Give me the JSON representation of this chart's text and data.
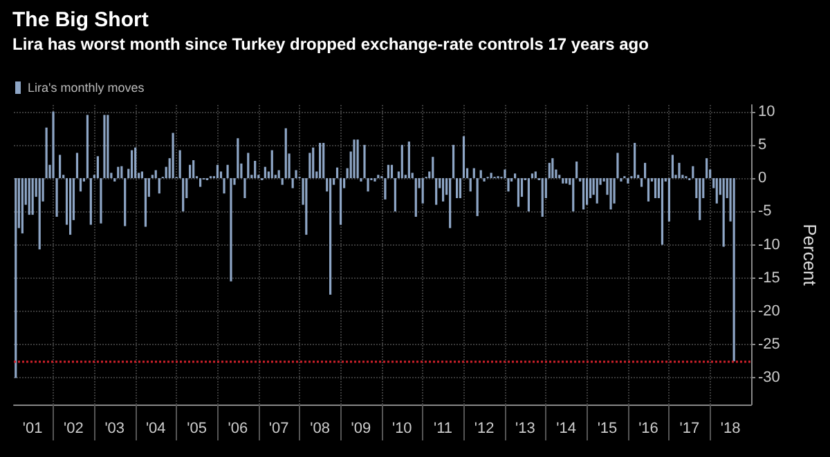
{
  "chart_data": {
    "type": "bar",
    "title": "The Big Short",
    "subtitle": "Lira has worst month since Turkey dropped exchange-rate controls 17 years ago",
    "ylabel": "Percent",
    "x": [
      "2001-02",
      "2001-03",
      "2001-04",
      "2001-05",
      "2001-06",
      "2001-07",
      "2001-08",
      "2001-09",
      "2001-10",
      "2001-11",
      "2001-12",
      "2002-01",
      "2002-02",
      "2002-03",
      "2002-04",
      "2002-05",
      "2002-06",
      "2002-07",
      "2002-08",
      "2002-09",
      "2002-10",
      "2002-11",
      "2002-12",
      "2003-01",
      "2003-02",
      "2003-03",
      "2003-04",
      "2003-05",
      "2003-06",
      "2003-07",
      "2003-08",
      "2003-09",
      "2003-10",
      "2003-11",
      "2003-12",
      "2004-01",
      "2004-02",
      "2004-03",
      "2004-04",
      "2004-05",
      "2004-06",
      "2004-07",
      "2004-08",
      "2004-09",
      "2004-10",
      "2004-11",
      "2004-12",
      "2005-01",
      "2005-02",
      "2005-03",
      "2005-04",
      "2005-05",
      "2005-06",
      "2005-07",
      "2005-08",
      "2005-09",
      "2005-10",
      "2005-11",
      "2005-12",
      "2006-01",
      "2006-02",
      "2006-03",
      "2006-04",
      "2006-05",
      "2006-06",
      "2006-07",
      "2006-08",
      "2006-09",
      "2006-10",
      "2006-11",
      "2006-12",
      "2007-01",
      "2007-02",
      "2007-03",
      "2007-04",
      "2007-05",
      "2007-06",
      "2007-07",
      "2007-08",
      "2007-09",
      "2007-10",
      "2007-11",
      "2007-12",
      "2008-01",
      "2008-02",
      "2008-03",
      "2008-04",
      "2008-05",
      "2008-06",
      "2008-07",
      "2008-08",
      "2008-09",
      "2008-10",
      "2008-11",
      "2008-12",
      "2009-01",
      "2009-02",
      "2009-03",
      "2009-04",
      "2009-05",
      "2009-06",
      "2009-07",
      "2009-08",
      "2009-09",
      "2009-10",
      "2009-11",
      "2009-12",
      "2010-01",
      "2010-02",
      "2010-03",
      "2010-04",
      "2010-05",
      "2010-06",
      "2010-07",
      "2010-08",
      "2010-09",
      "2010-10",
      "2010-11",
      "2010-12",
      "2011-01",
      "2011-02",
      "2011-03",
      "2011-04",
      "2011-05",
      "2011-06",
      "2011-07",
      "2011-08",
      "2011-09",
      "2011-10",
      "2011-11",
      "2011-12",
      "2012-01",
      "2012-02",
      "2012-03",
      "2012-04",
      "2012-05",
      "2012-06",
      "2012-07",
      "2012-08",
      "2012-09",
      "2012-10",
      "2012-11",
      "2012-12",
      "2013-01",
      "2013-02",
      "2013-03",
      "2013-04",
      "2013-05",
      "2013-06",
      "2013-07",
      "2013-08",
      "2013-09",
      "2013-10",
      "2013-11",
      "2013-12",
      "2014-01",
      "2014-02",
      "2014-03",
      "2014-04",
      "2014-05",
      "2014-06",
      "2014-07",
      "2014-08",
      "2014-09",
      "2014-10",
      "2014-11",
      "2014-12",
      "2015-01",
      "2015-02",
      "2015-03",
      "2015-04",
      "2015-05",
      "2015-06",
      "2015-07",
      "2015-08",
      "2015-09",
      "2015-10",
      "2015-11",
      "2015-12",
      "2016-01",
      "2016-02",
      "2016-03",
      "2016-04",
      "2016-05",
      "2016-06",
      "2016-07",
      "2016-08",
      "2016-09",
      "2016-10",
      "2016-11",
      "2016-12",
      "2017-01",
      "2017-02",
      "2017-03",
      "2017-04",
      "2017-05",
      "2017-06",
      "2017-07",
      "2017-08",
      "2017-09",
      "2017-10",
      "2017-11",
      "2017-12",
      "2018-01",
      "2018-02",
      "2018-03",
      "2018-04",
      "2018-05",
      "2018-06",
      "2018-07",
      "2018-08"
    ],
    "series": [
      {
        "name": "Lira's monthly moves",
        "color": "#8ea6c6",
        "values": [
          -30,
          -7.5,
          -8.3,
          -4,
          -5.5,
          -5.5,
          -2.8,
          -10.7,
          -3.5,
          7.6,
          2,
          10,
          -5.8,
          3.5,
          0.5,
          -7,
          -8.5,
          -6.3,
          3.8,
          -2,
          -0.5,
          9.5,
          -7,
          0.5,
          3.3,
          -6.8,
          9.5,
          9.5,
          0.8,
          -0.5,
          1.7,
          1.8,
          -7.2,
          1.4,
          4.2,
          4.6,
          0.8,
          1,
          -7.3,
          -2.8,
          0.5,
          1.2,
          -2.3,
          0.2,
          1.7,
          3,
          6.8,
          0.2,
          4.2,
          -5,
          -3,
          2,
          2.7,
          0.3,
          -1.3,
          -0.2,
          -0.3,
          0.3,
          0.3,
          2,
          1,
          -2.3,
          2,
          -15.5,
          -1,
          6,
          2.2,
          -3,
          3.8,
          0.5,
          2.6,
          0.5,
          -0.3,
          1.7,
          1,
          4.2,
          0.5,
          1.2,
          -1,
          7.5,
          3.7,
          -1.5,
          1.2,
          0.2,
          -4,
          -8.5,
          3.8,
          4.6,
          1,
          5.3,
          5.3,
          -2,
          -17.5,
          -1,
          1.6,
          -7,
          -1.5,
          1.5,
          4,
          5.8,
          5.8,
          -0.5,
          5,
          -2,
          -0.3,
          -0.5,
          0.5,
          0.3,
          -3.2,
          2,
          2,
          -5,
          1,
          5,
          0.5,
          5.5,
          0.8,
          -5.8,
          -1.5,
          -3.8,
          0.2,
          1,
          3.2,
          -4,
          -1.5,
          -3.5,
          -2.5,
          -7.5,
          5,
          -3,
          -3,
          6.3,
          1.5,
          -2,
          1.5,
          -5.7,
          1.2,
          -0.5,
          0.2,
          0.8,
          0.2,
          0.3,
          0.2,
          1.3,
          -2,
          -0.5,
          0.7,
          -4.3,
          -2.8,
          -0.3,
          -5,
          0.7,
          1,
          -0.3,
          -5.8,
          -3,
          2.3,
          3,
          1.3,
          0.5,
          -0.8,
          -0.8,
          -1,
          -5,
          2.5,
          -0.5,
          -4.7,
          -4,
          -3,
          -2.5,
          -3.8,
          -1,
          -0.5,
          -2.5,
          -4.7,
          -3.8,
          3.8,
          -0.5,
          0.3,
          -0.8,
          0.3,
          5.3,
          0.5,
          -1.3,
          2.3,
          -3.5,
          -0.5,
          -3,
          -3,
          -10,
          -0.5,
          -6.5,
          3.5,
          0.5,
          2.3,
          0.5,
          0.3,
          -0.3,
          1.8,
          -3,
          -6.3,
          -3,
          3,
          1.3,
          -1.5,
          -3.8,
          -2.5,
          -10.3,
          -3,
          -6.5,
          -27.5
        ]
      }
    ],
    "xlim": [
      "2001-01-15",
      "2019-01"
    ],
    "xticks": [
      {
        "value": "2001-07",
        "label": "'01"
      },
      {
        "value": "2002-07",
        "label": "'02"
      },
      {
        "value": "2003-07",
        "label": "'03"
      },
      {
        "value": "2004-07",
        "label": "'04"
      },
      {
        "value": "2005-07",
        "label": "'05"
      },
      {
        "value": "2006-07",
        "label": "'06"
      },
      {
        "value": "2007-07",
        "label": "'07"
      },
      {
        "value": "2008-07",
        "label": "'08"
      },
      {
        "value": "2009-07",
        "label": "'09"
      },
      {
        "value": "2010-07",
        "label": "'10"
      },
      {
        "value": "2011-07",
        "label": "'11"
      },
      {
        "value": "2012-07",
        "label": "'12"
      },
      {
        "value": "2013-07",
        "label": "'13"
      },
      {
        "value": "2014-07",
        "label": "'14"
      },
      {
        "value": "2015-07",
        "label": "'15"
      },
      {
        "value": "2016-07",
        "label": "'16"
      },
      {
        "value": "2017-07",
        "label": "'17"
      },
      {
        "value": "2018-07",
        "label": "'18"
      },
      {
        "value": "2002",
        "label": null
      },
      {
        "value": "2003",
        "label": null
      },
      {
        "value": "2004",
        "label": null
      },
      {
        "value": "2005",
        "label": null
      },
      {
        "value": "2006",
        "label": null
      },
      {
        "value": "2007",
        "label": null
      },
      {
        "value": "2008",
        "label": null
      },
      {
        "value": "2009",
        "label": null
      },
      {
        "value": "2010",
        "label": null
      },
      {
        "value": "2011",
        "label": null
      },
      {
        "value": "2012",
        "label": null
      },
      {
        "value": "2013",
        "label": null
      },
      {
        "value": "2014",
        "label": null
      },
      {
        "value": "2015",
        "label": null
      },
      {
        "value": "2016",
        "label": null
      },
      {
        "value": "2017",
        "label": null
      },
      {
        "value": "2018",
        "label": null
      }
    ],
    "ylim": [
      -34,
      11
    ],
    "yticks": [
      10,
      5,
      0,
      -5,
      -10,
      -15,
      -20,
      -25,
      -30
    ],
    "ref_lines": [
      {
        "axis": "y",
        "value": -27.5,
        "color": "#d0202a",
        "line_style": "dotted"
      }
    ],
    "grid": true,
    "legend": "top left"
  }
}
